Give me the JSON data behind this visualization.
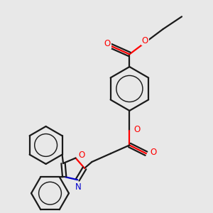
{
  "background_color": "#e8e8e8",
  "bond_color": "#1a1a1a",
  "oxygen_color": "#ff0000",
  "nitrogen_color": "#0000cc",
  "bond_width": 1.6,
  "figsize": [
    3.0,
    3.0
  ],
  "dpi": 100,
  "xlim": [
    0.0,
    10.0
  ],
  "ylim": [
    0.0,
    10.0
  ]
}
